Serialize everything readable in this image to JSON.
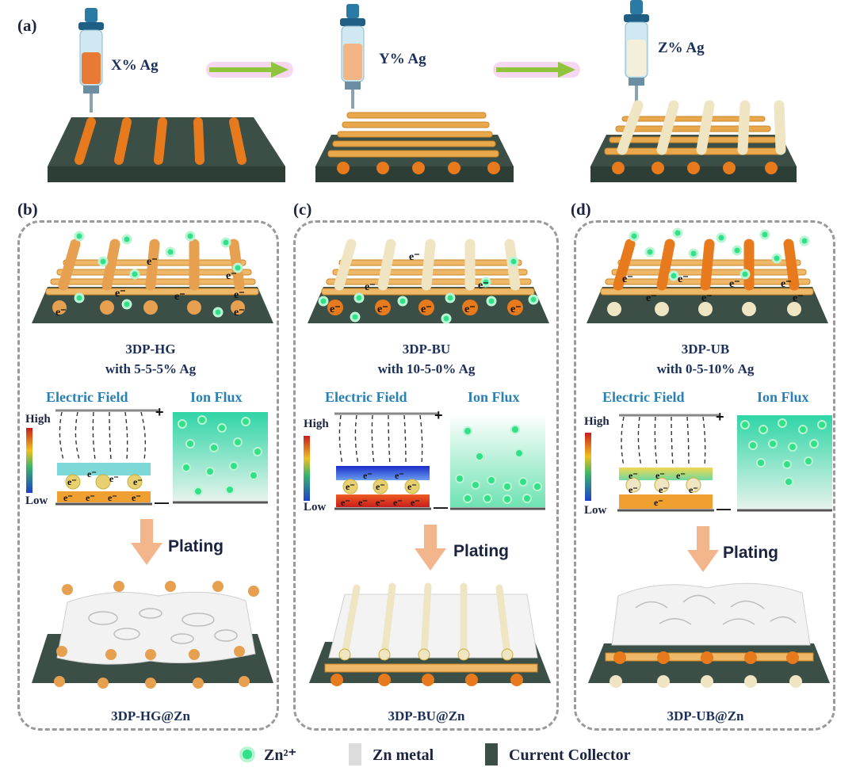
{
  "panel_labels": {
    "a": "(a)",
    "b": "(b)",
    "c": "(c)",
    "d": "(d)"
  },
  "top_row": [
    {
      "ag": "X% Ag"
    },
    {
      "ag": "Y% Ag"
    },
    {
      "ag": "Z% Ag"
    }
  ],
  "panels": [
    {
      "name": "3DP-HG",
      "composition": "with 5-5-5% Ag",
      "result": "3DP-HG@Zn"
    },
    {
      "name": "3DP-BU",
      "composition": "with 10-5-0% Ag",
      "result": "3DP-BU@Zn"
    },
    {
      "name": "3DP-UB",
      "composition": "with 0-5-10% Ag",
      "result": "3DP-UB@Zn"
    }
  ],
  "field_labels": {
    "electric_field": "Electric Field",
    "ion_flux": "Ion Flux",
    "high": "High",
    "low": "Low",
    "plus": "+",
    "minus": "—",
    "plating": "Plating",
    "electron": "e⁻"
  },
  "legend": {
    "zn_ion": "Zn²⁺",
    "zn_metal": "Zn metal",
    "current_collector": "Current Collector"
  },
  "colors": {
    "collector": "#3b4f46",
    "ag_orange": "#e67a1c",
    "ag_light": "#f1e6c4",
    "ion_green": "#33e08a",
    "arrow_green": "#8fc43c",
    "plating_arrow": "#f3b58c"
  }
}
